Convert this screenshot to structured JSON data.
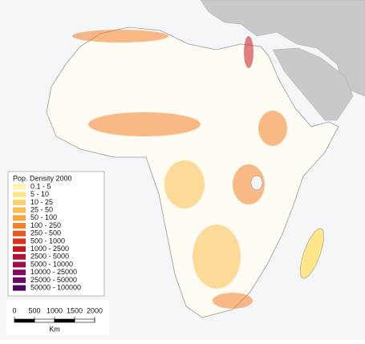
{
  "legend": {
    "title": "Pop. Density 2000",
    "items": [
      {
        "label": "0.1 - 5",
        "color": "#fff3b0"
      },
      {
        "label": "5 - 10",
        "color": "#fde58a"
      },
      {
        "label": "10 - 25",
        "color": "#fcd36a"
      },
      {
        "label": "25 - 50",
        "color": "#fbbf4f"
      },
      {
        "label": "50 - 100",
        "color": "#f8a43c"
      },
      {
        "label": "100 - 250",
        "color": "#f4822c"
      },
      {
        "label": "250 - 500",
        "color": "#ea5a1f"
      },
      {
        "label": "500 - 1000",
        "color": "#dc3218"
      },
      {
        "label": "1000 - 2500",
        "color": "#c51b1d"
      },
      {
        "label": "2500 - 5000",
        "color": "#b01434"
      },
      {
        "label": "5000 - 10000",
        "color": "#9a0f4a"
      },
      {
        "label": "10000 - 25000",
        "color": "#850c5c"
      },
      {
        "label": "25000 - 50000",
        "color": "#6e0a66"
      },
      {
        "label": "50000 - 100000",
        "color": "#52075e"
      }
    ]
  },
  "scale_bar": {
    "ticks": [
      0,
      500,
      1000,
      1500,
      2000
    ],
    "unit": "Km"
  }
}
